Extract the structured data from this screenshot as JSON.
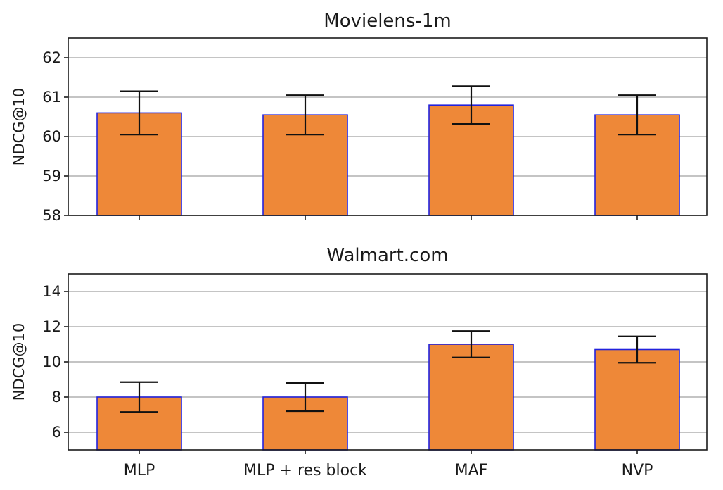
{
  "chart_data": [
    {
      "type": "bar",
      "title": "Movielens-1m",
      "ylabel": "NDCG@10",
      "xlabel": "",
      "categories": [
        "MLP",
        "MLP + res block",
        "MAF",
        "NVP"
      ],
      "values": [
        60.6,
        60.55,
        60.8,
        60.55
      ],
      "errors": [
        0.55,
        0.5,
        0.48,
        0.5
      ],
      "ylim": [
        58,
        62.5
      ],
      "yticks": [
        58,
        59,
        60,
        61,
        62
      ],
      "show_category_labels": false,
      "bar_color": "#ee8838",
      "edge_color": "#2222dd",
      "grid": "y"
    },
    {
      "type": "bar",
      "title": "Walmart.com",
      "ylabel": "NDCG@10",
      "xlabel": "",
      "categories": [
        "MLP",
        "MLP + res block",
        "MAF",
        "NVP"
      ],
      "values": [
        8.0,
        8.0,
        11.0,
        10.7
      ],
      "errors": [
        0.85,
        0.8,
        0.75,
        0.75
      ],
      "ylim": [
        5,
        15
      ],
      "yticks": [
        6,
        8,
        10,
        12,
        14
      ],
      "show_category_labels": true,
      "bar_color": "#ee8838",
      "edge_color": "#2222dd",
      "grid": "y"
    }
  ]
}
